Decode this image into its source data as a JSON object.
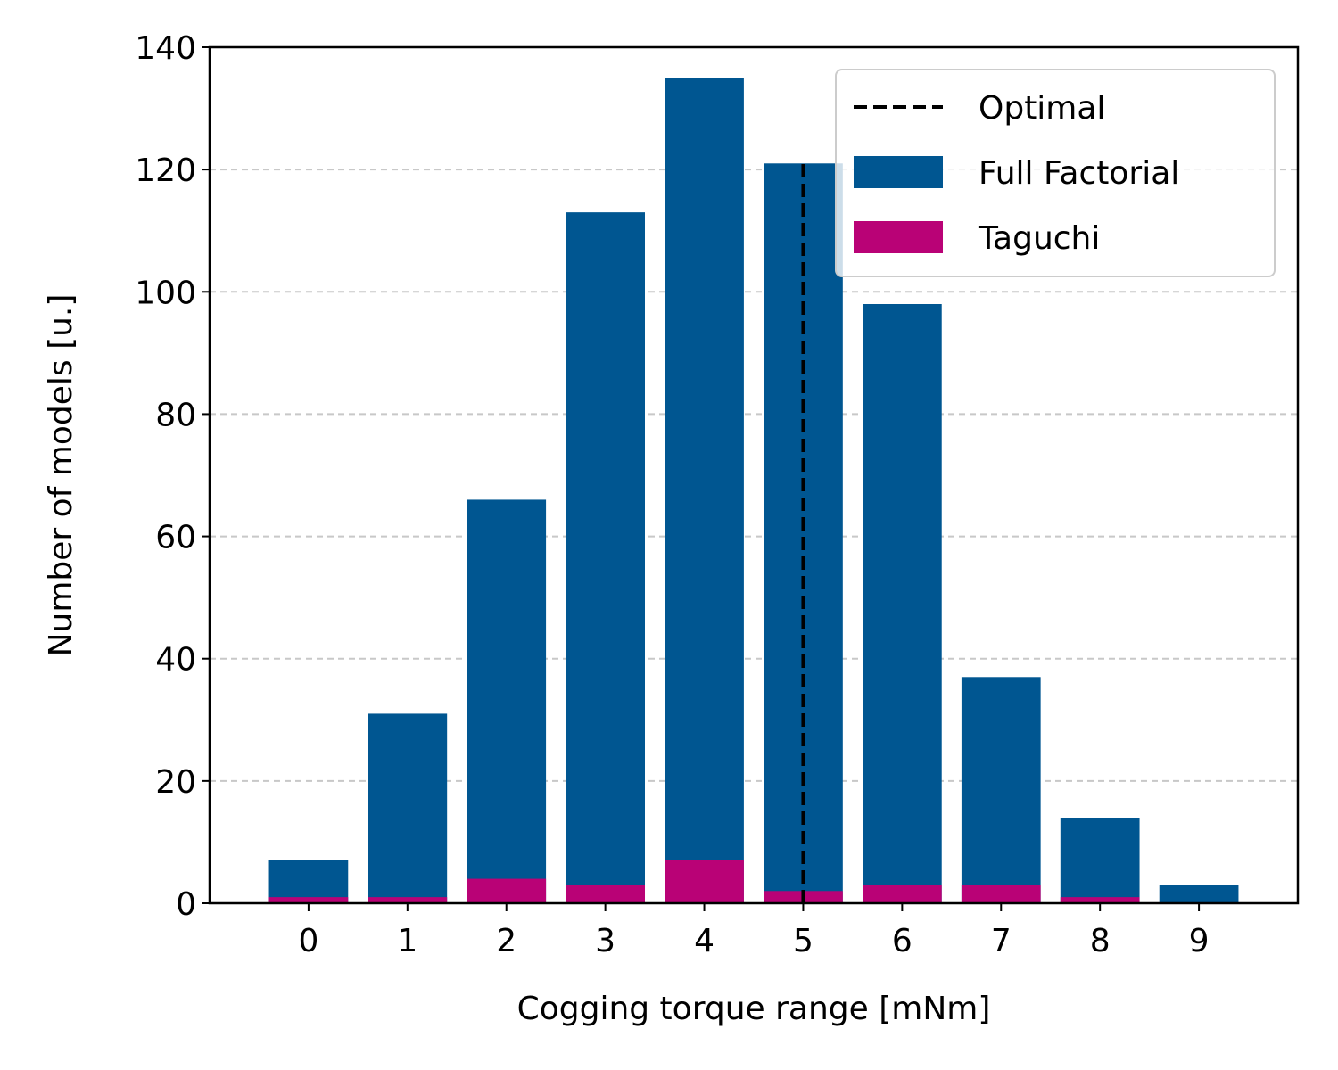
{
  "chart_data": {
    "type": "bar",
    "title": "",
    "xlabel": "Cogging torque range [mNm]",
    "ylabel": "Number of models [u.]",
    "categories": [
      "0",
      "1",
      "2",
      "3",
      "4",
      "5",
      "6",
      "7",
      "8",
      "9"
    ],
    "series": [
      {
        "name": "Full Factorial",
        "color": "#005691",
        "values": [
          7,
          31,
          66,
          113,
          135,
          121,
          98,
          37,
          14,
          3
        ]
      },
      {
        "name": "Taguchi",
        "color": "#b90276",
        "values": [
          1,
          1,
          4,
          3,
          7,
          2,
          3,
          3,
          1,
          0
        ]
      }
    ],
    "reference_line": {
      "name": "Optimal",
      "x": "5",
      "y_top": 121,
      "style": "dashed",
      "color": "#000000"
    },
    "ylim": [
      0,
      140
    ],
    "yticks": [
      0,
      20,
      40,
      60,
      80,
      100,
      120,
      140
    ],
    "grid": {
      "y": true,
      "x": false,
      "style": "dashed"
    },
    "legend": {
      "placement": "top-right",
      "order": [
        "Optimal",
        "Full Factorial",
        "Taguchi"
      ]
    }
  }
}
